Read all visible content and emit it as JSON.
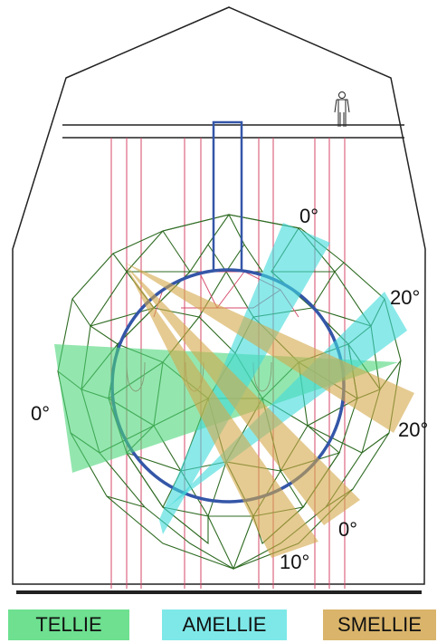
{
  "labels": {
    "amellie_top": "0°",
    "amellie_right": "20°",
    "tellie_left": "0°",
    "smellie_right": "20°",
    "smellie_bottom_0": "0°",
    "smellie_bottom_10": "10°"
  },
  "legend": [
    {
      "label": "TELLIE",
      "color": "#6ee090"
    },
    {
      "label": "AMELLIE",
      "color": "#7ee8e8"
    },
    {
      "label": "SMELLIE",
      "color": "#d9b46a"
    }
  ],
  "colors": {
    "tellie": "#4cd67a",
    "amellie": "#3fdbdb",
    "smellie": "#d4a84a",
    "geodesic": "#2e6b22",
    "ropes": "#d4486a",
    "acrylic_vessel": "#3456a8",
    "cavity": "#222222"
  }
}
